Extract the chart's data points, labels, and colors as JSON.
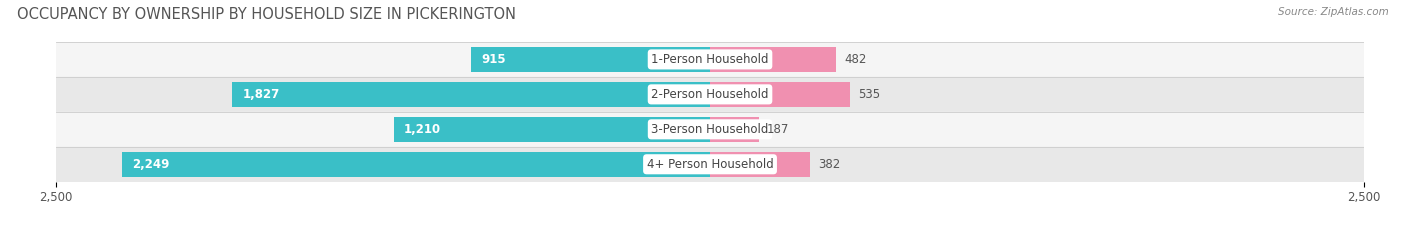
{
  "title": "OCCUPANCY BY OWNERSHIP BY HOUSEHOLD SIZE IN PICKERINGTON",
  "source": "Source: ZipAtlas.com",
  "categories": [
    "1-Person Household",
    "2-Person Household",
    "3-Person Household",
    "4+ Person Household"
  ],
  "owner_values": [
    915,
    1827,
    1210,
    2249
  ],
  "renter_values": [
    482,
    535,
    187,
    382
  ],
  "owner_color": "#3abfc7",
  "renter_color": "#f090b0",
  "row_bg_colors": [
    "#f5f5f5",
    "#e8e8e8",
    "#f5f5f5",
    "#e8e8e8"
  ],
  "xlim": 2500,
  "title_fontsize": 10.5,
  "label_fontsize": 8.5,
  "tick_fontsize": 8.5,
  "figsize": [
    14.06,
    2.33
  ],
  "dpi": 100
}
